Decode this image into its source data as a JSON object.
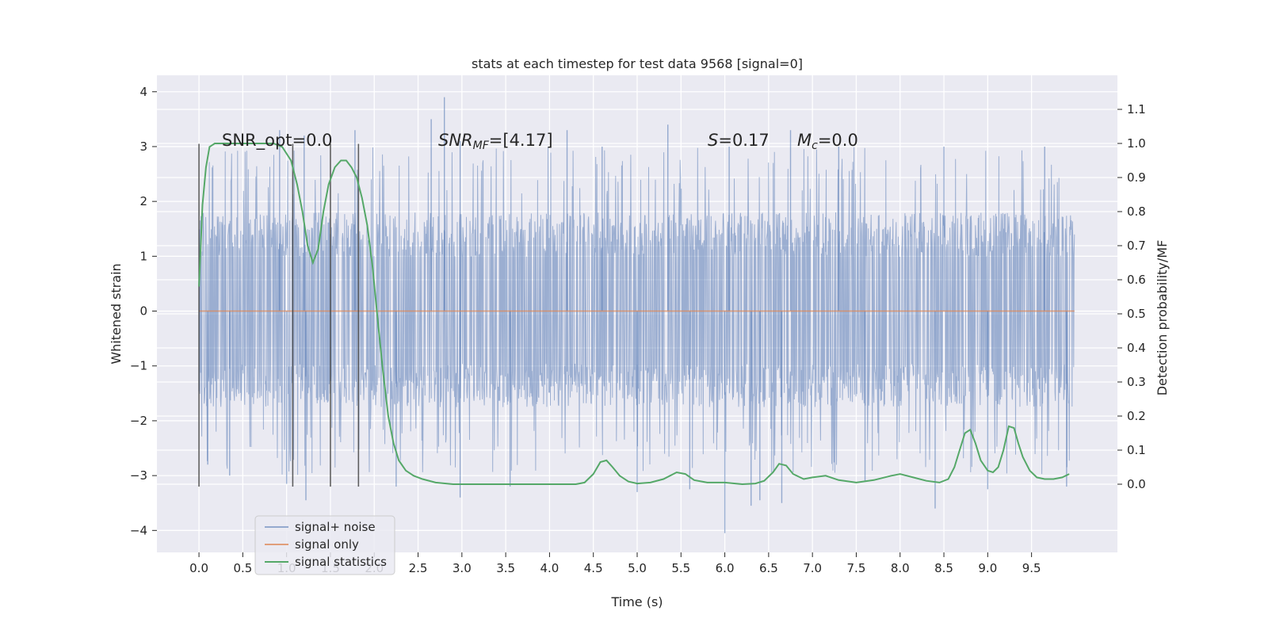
{
  "colors": {
    "plot_bg": "#EAEAF2",
    "grid": "#FFFFFF",
    "noise": "#4C72B0",
    "signal": "#DD8452",
    "stat": "#55A868",
    "vline": "#3a3a3a"
  },
  "chart_data": {
    "type": "line",
    "title": "stats at each timestep for test data 9568 [signal=0]",
    "xlabel": "Time (s)",
    "ylabel_left": "Whitened strain",
    "ylabel_right": "Detection probability/MF",
    "xlim": [
      -0.48,
      10.48
    ],
    "ylim_left": [
      -4.4,
      4.3
    ],
    "ylim_right": [
      -0.2,
      1.2
    ],
    "x_ticks": [
      "0.0",
      "0.5",
      "1.0",
      "1.5",
      "2.0",
      "2.5",
      "3.0",
      "3.5",
      "4.0",
      "4.5",
      "5.0",
      "5.5",
      "6.0",
      "6.5",
      "7.0",
      "7.5",
      "8.0",
      "8.5",
      "9.0",
      "9.5"
    ],
    "y_ticks_left": [
      "4",
      "3",
      "2",
      "1",
      "0",
      "−1",
      "−2",
      "−3",
      "−4"
    ],
    "y_ticks_right": [
      "1.1",
      "1.0",
      "0.9",
      "0.8",
      "0.7",
      "0.6",
      "0.5",
      "0.4",
      "0.3",
      "0.2",
      "0.1",
      "0.0"
    ],
    "annotations": {
      "snr_opt": "SNR_opt=0.0",
      "snr_mf_var": "SNR",
      "snr_mf_sub": "MF",
      "snr_mf_val": "=[4.17]",
      "s_var": "S",
      "s_val": "=0.17",
      "mc_var": "M",
      "mc_sub": "c",
      "mc_val": "=0.0"
    },
    "vlines_x": [
      0.0,
      1.07,
      1.5,
      1.82
    ],
    "noise_x_range": [
      0.0,
      9.99
    ],
    "noise_envelope": {
      "dense_band": [
        -1.75,
        1.8
      ],
      "typical_peak_pos": 3.0,
      "typical_peak_neg": -3.0
    },
    "noise_spikes": [
      {
        "x": 2.8,
        "y": 3.9
      },
      {
        "x": 2.65,
        "y": 3.5
      },
      {
        "x": 5.35,
        "y": 3.4
      },
      {
        "x": 6.75,
        "y": 3.3
      },
      {
        "x": 1.78,
        "y": 3.3
      },
      {
        "x": 0.92,
        "y": 3.3
      },
      {
        "x": 4.2,
        "y": 3.3
      },
      {
        "x": 2.98,
        "y": 3.1
      },
      {
        "x": 6.0,
        "y": -4.05
      },
      {
        "x": 1.22,
        "y": -3.45
      },
      {
        "x": 2.98,
        "y": -3.4
      },
      {
        "x": 6.3,
        "y": -3.55
      },
      {
        "x": 6.4,
        "y": -3.45
      },
      {
        "x": 8.4,
        "y": -3.6
      },
      {
        "x": 6.65,
        "y": -3.5
      },
      {
        "x": 5.0,
        "y": -3.3
      },
      {
        "x": 3.55,
        "y": -3.2
      },
      {
        "x": 5.6,
        "y": -3.25
      },
      {
        "x": 9.0,
        "y": -3.25
      },
      {
        "x": 9.9,
        "y": -3.2
      },
      {
        "x": 2.25,
        "y": -3.2
      },
      {
        "x": 7.6,
        "y": -3.1
      },
      {
        "x": 0.1,
        "y": -2.8
      },
      {
        "x": 0.35,
        "y": -3.0
      },
      {
        "x": 7.3,
        "y": 3.0
      },
      {
        "x": 8.5,
        "y": 3.0
      },
      {
        "x": 9.65,
        "y": 3.0
      },
      {
        "x": 6.05,
        "y": 3.0
      },
      {
        "x": 1.2,
        "y": 3.2
      },
      {
        "x": 4.6,
        "y": 3.0
      },
      {
        "x": 1.0,
        "y": -3.15
      }
    ],
    "series": [
      {
        "name": "signal+ noise",
        "kind": "noise"
      },
      {
        "name": "signal only",
        "kind": "flat",
        "x": [
          0.0,
          9.99
        ],
        "y": [
          0.0,
          0.0
        ]
      },
      {
        "name": "signal statistics",
        "kind": "line",
        "axis": "right",
        "x": [
          0.0,
          0.04,
          0.08,
          0.12,
          0.18,
          0.25,
          0.35,
          0.5,
          0.7,
          0.85,
          0.95,
          1.05,
          1.12,
          1.18,
          1.24,
          1.3,
          1.36,
          1.42,
          1.48,
          1.55,
          1.62,
          1.68,
          1.74,
          1.8,
          1.86,
          1.92,
          1.98,
          2.04,
          2.1,
          2.16,
          2.22,
          2.28,
          2.36,
          2.45,
          2.55,
          2.7,
          2.9,
          3.2,
          3.5,
          3.8,
          4.0,
          4.3,
          4.4,
          4.5,
          4.58,
          4.65,
          4.72,
          4.8,
          4.9,
          5.0,
          5.15,
          5.3,
          5.45,
          5.55,
          5.65,
          5.8,
          6.0,
          6.2,
          6.35,
          6.45,
          6.55,
          6.62,
          6.7,
          6.78,
          6.9,
          7.0,
          7.15,
          7.3,
          7.5,
          7.7,
          7.9,
          8.0,
          8.15,
          8.3,
          8.45,
          8.55,
          8.62,
          8.68,
          8.74,
          8.8,
          8.86,
          8.92,
          9.0,
          9.06,
          9.12,
          9.18,
          9.24,
          9.3,
          9.35,
          9.4,
          9.48,
          9.56,
          9.65,
          9.75,
          9.85,
          9.93
        ],
        "y": [
          0.58,
          0.82,
          0.93,
          0.99,
          1.0,
          1.0,
          1.0,
          1.0,
          1.0,
          1.0,
          0.99,
          0.95,
          0.88,
          0.8,
          0.7,
          0.65,
          0.69,
          0.8,
          0.88,
          0.93,
          0.95,
          0.95,
          0.93,
          0.9,
          0.84,
          0.76,
          0.64,
          0.48,
          0.33,
          0.2,
          0.12,
          0.07,
          0.04,
          0.025,
          0.015,
          0.005,
          0.0,
          0.0,
          0.0,
          0.0,
          0.0,
          0.0,
          0.005,
          0.03,
          0.065,
          0.07,
          0.05,
          0.025,
          0.008,
          0.002,
          0.005,
          0.015,
          0.035,
          0.03,
          0.012,
          0.005,
          0.005,
          0.0,
          0.002,
          0.01,
          0.035,
          0.06,
          0.055,
          0.03,
          0.015,
          0.02,
          0.025,
          0.012,
          0.005,
          0.012,
          0.025,
          0.03,
          0.02,
          0.01,
          0.005,
          0.015,
          0.05,
          0.1,
          0.15,
          0.16,
          0.12,
          0.07,
          0.04,
          0.035,
          0.05,
          0.1,
          0.17,
          0.165,
          0.12,
          0.08,
          0.04,
          0.02,
          0.015,
          0.015,
          0.02,
          0.03
        ]
      }
    ],
    "legend_position": "lower-left",
    "grid": true
  }
}
